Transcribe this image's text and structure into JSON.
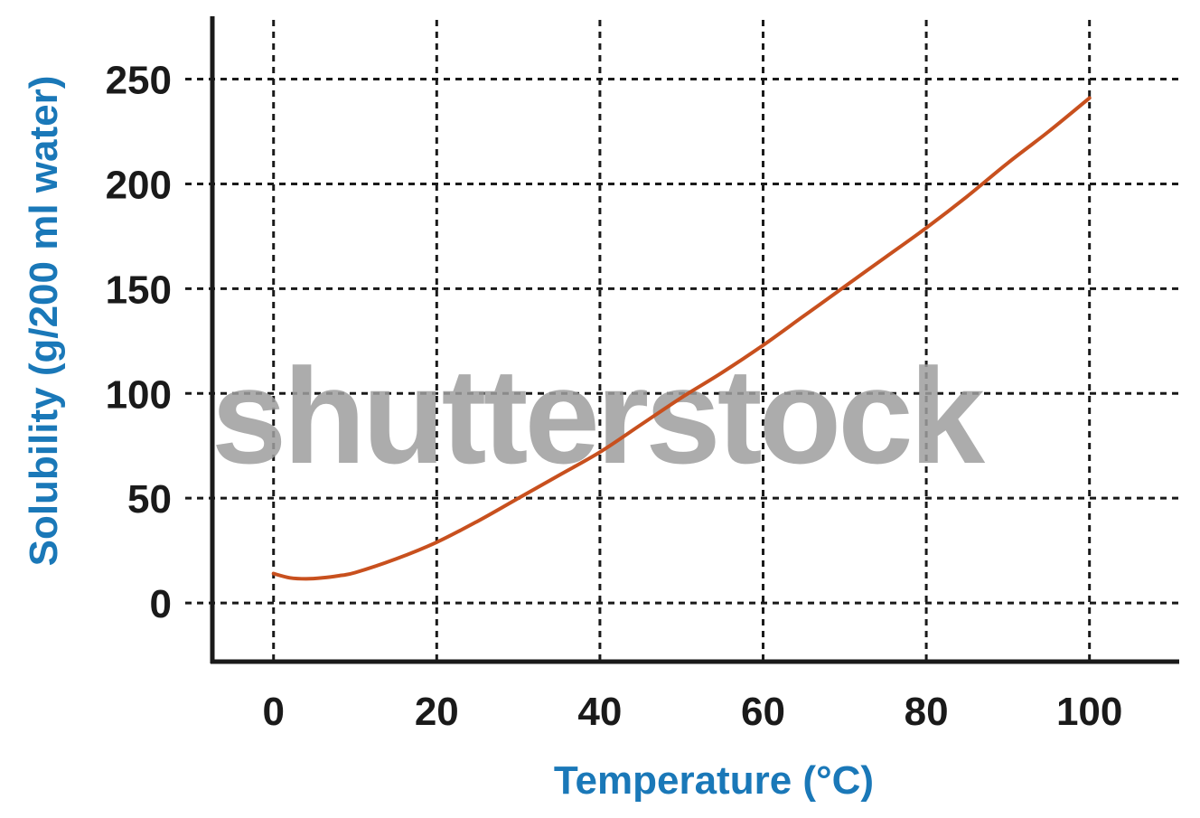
{
  "colors": {
    "axis_title": "#1a78b8",
    "curve": "#c8501e",
    "grid": "#1a1a1a",
    "axis": "#1a1a1a",
    "watermark": "#9e9e9e"
  },
  "watermark": "shutterstock",
  "chart_data": {
    "type": "line",
    "xlabel": "Temperature (°C)",
    "ylabel": "Solubility (g/200 ml water)",
    "xlim": [
      -7.5,
      111
    ],
    "ylim": [
      -28,
      280
    ],
    "x_ticks": [
      0,
      20,
      40,
      60,
      80,
      100
    ],
    "y_ticks": [
      0,
      50,
      100,
      150,
      200,
      250
    ],
    "x_tick_labels": [
      "0",
      "20",
      "40",
      "60",
      "80",
      "100"
    ],
    "y_tick_labels": [
      "0",
      "50",
      "100",
      "150",
      "200",
      "250"
    ],
    "grid": true,
    "grid_style": "dashed",
    "legend": false,
    "series": [
      {
        "color": "#c8501e",
        "x": [
          0,
          2,
          4,
          6,
          8,
          10,
          15,
          20,
          25,
          30,
          35,
          40,
          45,
          50,
          55,
          60,
          65,
          70,
          75,
          80,
          85,
          90,
          95,
          100
        ],
        "y": [
          14,
          12,
          11.5,
          12,
          13,
          14.5,
          21,
          29,
          39,
          50,
          61,
          72,
          85,
          98,
          110,
          123,
          137,
          151,
          165,
          179,
          194,
          210,
          225,
          241
        ]
      }
    ]
  }
}
